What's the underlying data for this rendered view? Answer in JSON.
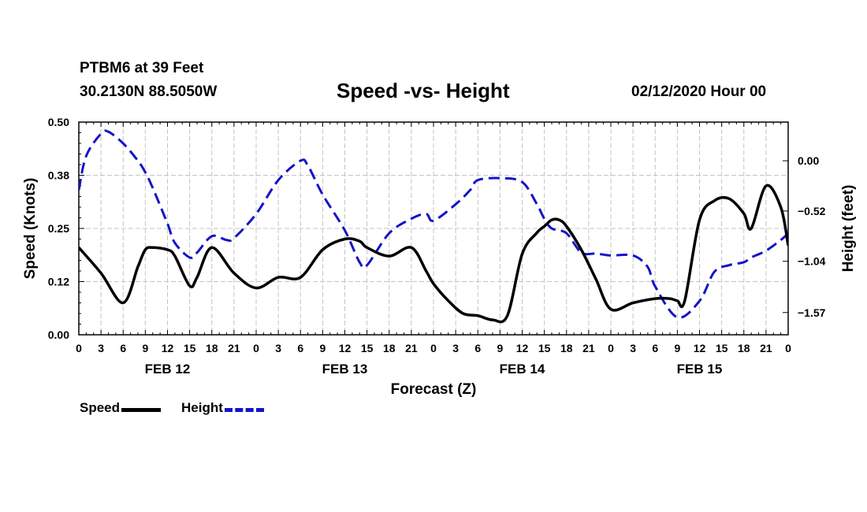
{
  "header": {
    "station": "PTBM6 at 39 Feet",
    "coords": "30.2130N 88.5050W",
    "date": "02/12/2020 Hour 00"
  },
  "chart_data": {
    "type": "line",
    "title": "Speed -vs- Height",
    "xlabel": "Forecast (Z)",
    "ylabel_left": "Speed (Knots)",
    "ylabel_right": "Height (feet)",
    "x_range": [
      0,
      96
    ],
    "x_tick_labels": [
      "0",
      "3",
      "6",
      "9",
      "12",
      "15",
      "18",
      "21",
      "0",
      "3",
      "6",
      "9",
      "12",
      "15",
      "18",
      "21",
      "0",
      "3",
      "6",
      "9",
      "12",
      "15",
      "18",
      "21",
      "0",
      "3",
      "6",
      "9",
      "12",
      "15",
      "18",
      "21",
      "0"
    ],
    "day_labels": [
      {
        "hour": 12,
        "label": "FEB 12"
      },
      {
        "hour": 36,
        "label": "FEB 13"
      },
      {
        "hour": 60,
        "label": "FEB 14"
      },
      {
        "hour": 84,
        "label": "FEB 15"
      }
    ],
    "ylim_left": [
      0,
      0.5
    ],
    "y_ticks_left": [
      0,
      0.125,
      0.25,
      0.375,
      0.5
    ],
    "y_tick_labels_left": [
      "0.00",
      "0.12",
      "0.25",
      "0.38",
      "0.50"
    ],
    "ylim_right": [
      -1.8,
      0.4
    ],
    "y_ticks_right": [
      -1.57,
      -1.04,
      -0.52,
      0.0
    ],
    "y_tick_labels_right": [
      "−1.57",
      "−1.04",
      "−0.52",
      "0.00"
    ],
    "grid": true,
    "series": [
      {
        "name": "Speed",
        "axis": "left",
        "color": "#000000",
        "style": "solid",
        "x": [
          0,
          3,
          6,
          8,
          9,
          10,
          12,
          13,
          15,
          16,
          18,
          21,
          24,
          27,
          30,
          33,
          36,
          38,
          39,
          42,
          45,
          47,
          48,
          50,
          52,
          54,
          56,
          58,
          60,
          62,
          63,
          64,
          65,
          66,
          68,
          70,
          72,
          75,
          78,
          80,
          81,
          82,
          84,
          86,
          88,
          90,
          91,
          93,
          95,
          96
        ],
        "y": [
          0.205,
          0.145,
          0.075,
          0.16,
          0.2,
          0.205,
          0.2,
          0.185,
          0.115,
          0.135,
          0.205,
          0.145,
          0.11,
          0.135,
          0.135,
          0.2,
          0.225,
          0.22,
          0.205,
          0.185,
          0.205,
          0.15,
          0.12,
          0.08,
          0.05,
          0.045,
          0.035,
          0.045,
          0.19,
          0.24,
          0.255,
          0.27,
          0.27,
          0.255,
          0.2,
          0.13,
          0.06,
          0.075,
          0.085,
          0.085,
          0.08,
          0.08,
          0.27,
          0.315,
          0.32,
          0.285,
          0.25,
          0.35,
          0.3,
          0.21
        ]
      },
      {
        "name": "Height",
        "axis": "right",
        "color": "#1414c8",
        "style": "dashed",
        "x": [
          0,
          1,
          3,
          4,
          6,
          8,
          9,
          10,
          12,
          13,
          15,
          16,
          18,
          20,
          21,
          24,
          27,
          30,
          31,
          33,
          36,
          38,
          39,
          42,
          45,
          47,
          48,
          51,
          53,
          54,
          57,
          60,
          62,
          63,
          64,
          66,
          68,
          70,
          72,
          75,
          77,
          78,
          81,
          84,
          86,
          88,
          90,
          91,
          93,
          95,
          96
        ],
        "y": [
          -0.3,
          0.05,
          0.28,
          0.3,
          0.18,
          0.0,
          -0.12,
          -0.28,
          -0.65,
          -0.85,
          -1.0,
          -0.95,
          -0.78,
          -0.82,
          -0.8,
          -0.55,
          -0.2,
          0.0,
          -0.05,
          -0.35,
          -0.72,
          -1.05,
          -1.08,
          -0.75,
          -0.6,
          -0.55,
          -0.62,
          -0.45,
          -0.3,
          -0.2,
          -0.18,
          -0.22,
          -0.45,
          -0.6,
          -0.7,
          -0.75,
          -0.95,
          -0.96,
          -0.98,
          -0.98,
          -1.1,
          -1.3,
          -1.62,
          -1.45,
          -1.15,
          -1.08,
          -1.05,
          -1.0,
          -0.93,
          -0.82,
          -0.75
        ]
      }
    ]
  },
  "legend": {
    "speed": "Speed",
    "height": "Height"
  }
}
